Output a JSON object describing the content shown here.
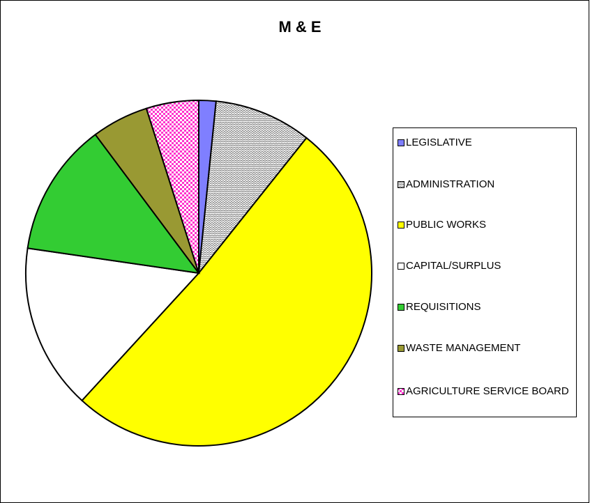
{
  "chart_data": {
    "type": "pie",
    "title": "M & E",
    "categories": [
      "LEGISLATIVE",
      "ADMINISTRATION",
      "PUBLIC WORKS",
      "CAPITAL/SURPLUS",
      "REQUISITIONS",
      "WASTE MANAGEMENT",
      "AGRICULTURE SERVICE BOARD"
    ],
    "values": [
      1.6,
      9.1,
      51.1,
      15.5,
      12.5,
      5.3,
      4.9
    ],
    "colors": [
      "#7f7fff",
      "#808080",
      "#ffff00",
      "#ffffff",
      "#33cc33",
      "#999933",
      "#ff33cc"
    ],
    "patterns": [
      "solid",
      "zigzag",
      "solid",
      "solid",
      "solid",
      "solid",
      "dots"
    ],
    "legend": "right"
  }
}
